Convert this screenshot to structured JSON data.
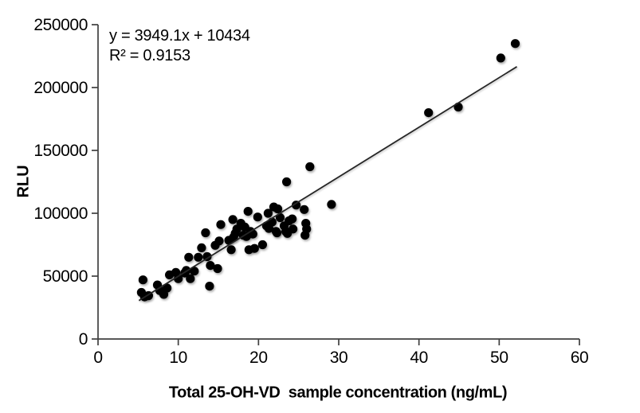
{
  "page": {
    "background": "#ffffff"
  },
  "chart_data": {
    "type": "scatter",
    "title": "",
    "xlabel": "Total 25-OH-VD  sample concentration (ng/mL)",
    "ylabel": "RLU",
    "xlim": [
      0,
      60
    ],
    "ylim": [
      0,
      250000
    ],
    "x_ticks": [
      0,
      10,
      20,
      30,
      40,
      50,
      60
    ],
    "y_ticks": [
      0,
      50000,
      100000,
      150000,
      200000,
      250000
    ],
    "grid": false,
    "legend": "none",
    "annotation": {
      "equation": "y = 3949.1x + 10434",
      "r_squared": "R² = 0.9153"
    },
    "trendline": {
      "slope": 3949.1,
      "intercept": 10434,
      "x_start": 5.1,
      "x_end": 52.2,
      "color": "#262626"
    },
    "marker": {
      "shape": "circle",
      "color": "#000000",
      "radius": 5.6
    },
    "axis_color": "#404040",
    "text_color": "#000000",
    "points": [
      [
        5.4,
        37000
      ],
      [
        5.6,
        47000
      ],
      [
        5.8,
        33500
      ],
      [
        6.3,
        34500
      ],
      [
        7.4,
        43000
      ],
      [
        7.7,
        38500
      ],
      [
        8.2,
        35500
      ],
      [
        8.6,
        40500
      ],
      [
        8.9,
        51000
      ],
      [
        9.7,
        53000
      ],
      [
        10.0,
        48000
      ],
      [
        10.8,
        52500
      ],
      [
        11.0,
        54500
      ],
      [
        11.3,
        65000
      ],
      [
        11.5,
        48000
      ],
      [
        12.0,
        54000
      ],
      [
        12.5,
        65000
      ],
      [
        12.9,
        72500
      ],
      [
        13.4,
        84500
      ],
      [
        13.6,
        65500
      ],
      [
        13.9,
        42000
      ],
      [
        14.0,
        58500
      ],
      [
        14.6,
        74500
      ],
      [
        14.9,
        56000
      ],
      [
        15.1,
        78000
      ],
      [
        15.3,
        91000
      ],
      [
        16.3,
        78500
      ],
      [
        16.6,
        71000
      ],
      [
        16.8,
        95000
      ],
      [
        16.9,
        81000
      ],
      [
        17.1,
        84000
      ],
      [
        17.3,
        87500
      ],
      [
        17.8,
        92000
      ],
      [
        18.1,
        82500
      ],
      [
        18.3,
        89000
      ],
      [
        18.5,
        81500
      ],
      [
        18.7,
        101500
      ],
      [
        18.8,
        71000
      ],
      [
        19.0,
        85500
      ],
      [
        19.3,
        83500
      ],
      [
        19.5,
        72000
      ],
      [
        19.9,
        97000
      ],
      [
        20.5,
        75000
      ],
      [
        21.0,
        90000
      ],
      [
        21.2,
        100000
      ],
      [
        21.3,
        88000
      ],
      [
        21.7,
        93000
      ],
      [
        21.9,
        105000
      ],
      [
        22.2,
        85500
      ],
      [
        22.3,
        84500
      ],
      [
        22.4,
        103500
      ],
      [
        22.7,
        96500
      ],
      [
        23.2,
        90000
      ],
      [
        23.4,
        85500
      ],
      [
        23.5,
        125000
      ],
      [
        23.6,
        84000
      ],
      [
        23.8,
        94000
      ],
      [
        24.2,
        95500
      ],
      [
        24.3,
        87500
      ],
      [
        24.7,
        106500
      ],
      [
        25.7,
        103000
      ],
      [
        25.8,
        82500
      ],
      [
        25.9,
        92000
      ],
      [
        26.0,
        87500
      ],
      [
        26.4,
        137000
      ],
      [
        29.1,
        107000
      ],
      [
        41.2,
        180000
      ],
      [
        44.9,
        184500
      ],
      [
        50.2,
        223500
      ],
      [
        52.0,
        235000
      ]
    ]
  }
}
